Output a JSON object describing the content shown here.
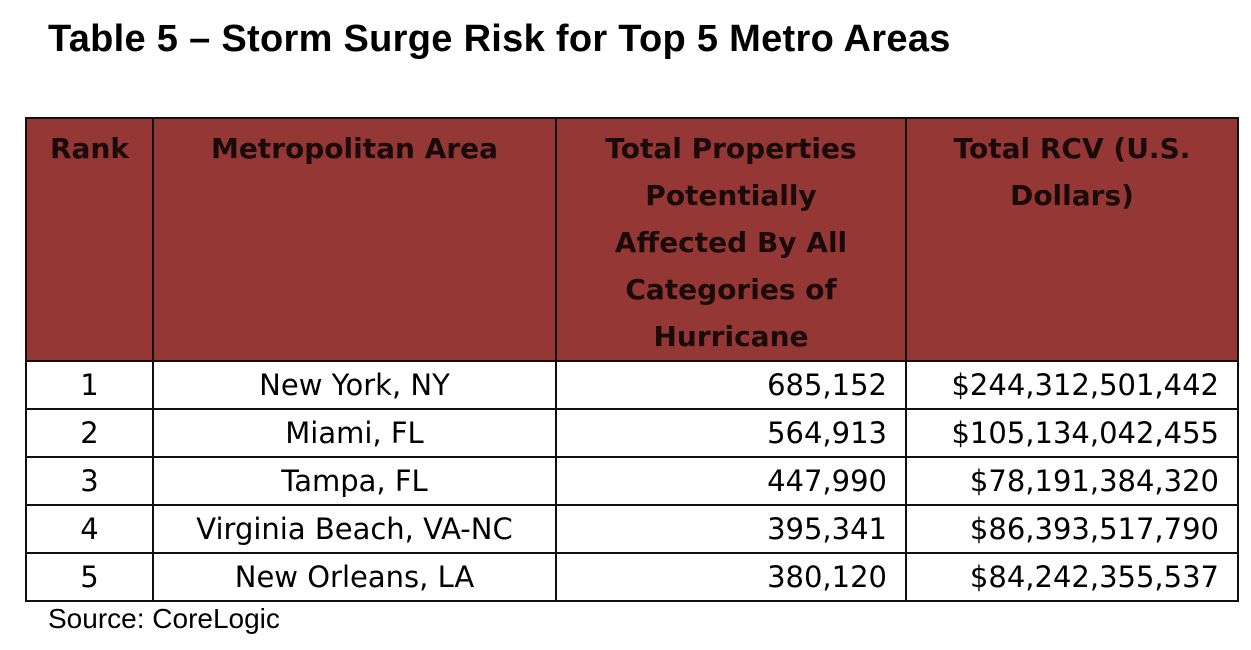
{
  "title": "Table 5 – Storm Surge Risk for Top 5 Metro Areas",
  "header_color": "#953735",
  "columns": [
    "Rank",
    "Metropolitan Area",
    "Total Properties Potentially Affected By All Categories of Hurricane",
    "Total RCV (U.S. Dollars)"
  ],
  "rows": [
    [
      "1",
      "New York, NY",
      "685,152",
      "$244,312,501,442"
    ],
    [
      "2",
      "Miami, FL",
      "564,913",
      "$105,134,042,455"
    ],
    [
      "3",
      "Tampa, FL",
      "447,990",
      "$78,191,384,320"
    ],
    [
      "4",
      "Virginia Beach, VA-NC",
      "395,341",
      "$86,393,517,790"
    ],
    [
      "5",
      "New Orleans, LA",
      "380,120",
      "$84,242,355,537"
    ]
  ],
  "source": "Source: CoreLogic"
}
